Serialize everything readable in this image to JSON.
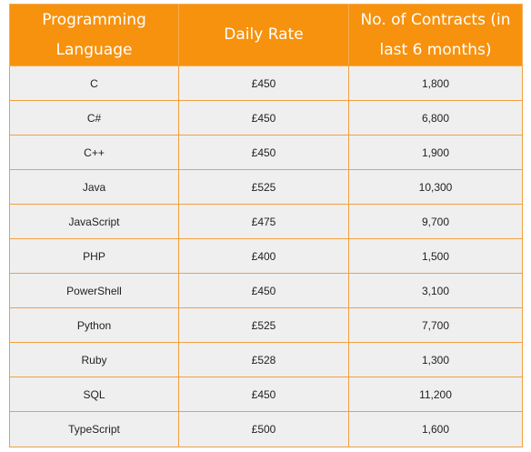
{
  "table": {
    "headers": [
      "Programming Language",
      "Daily Rate",
      "No. of Contracts (in last 6 months)"
    ],
    "rows": [
      [
        "C",
        "£450",
        "1,800"
      ],
      [
        "C#",
        "£450",
        "6,800"
      ],
      [
        "C++",
        "£450",
        "1,900"
      ],
      [
        "Java",
        "£525",
        "10,300"
      ],
      [
        "JavaScript",
        "£475",
        "9,700"
      ],
      [
        "PHP",
        "£400",
        "1,500"
      ],
      [
        "PowerShell",
        "£450",
        "3,100"
      ],
      [
        "Python",
        "£525",
        "7,700"
      ],
      [
        "Ruby",
        "£528",
        "1,300"
      ],
      [
        "SQL",
        "£450",
        "11,200"
      ],
      [
        "TypeScript",
        "£500",
        "1,600"
      ]
    ]
  },
  "colors": {
    "header_bg": "#f7920e",
    "header_text": "#ffffff",
    "cell_bg": "#efefef",
    "border": "#f0a040"
  }
}
